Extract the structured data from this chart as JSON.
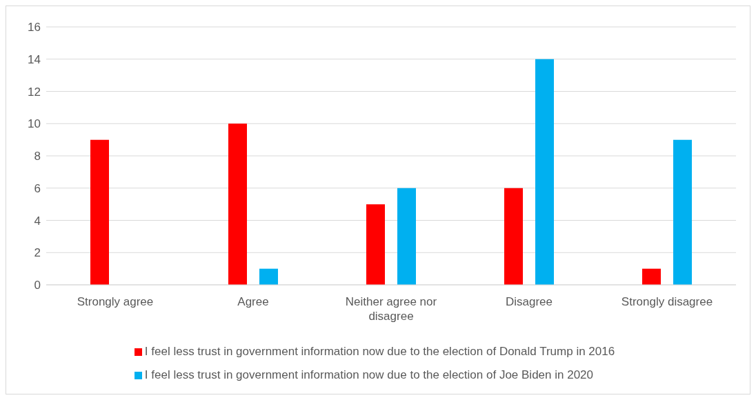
{
  "chart_data": {
    "type": "bar",
    "categories": [
      "Strongly agree",
      "Agree",
      "Neither agree nor disagree",
      "Disagree",
      "Strongly disagree"
    ],
    "series": [
      {
        "name": "I feel less trust in government information now due to the election of Donald Trump in 2016",
        "color": "#ff0000",
        "values": [
          9,
          10,
          5,
          6,
          1
        ]
      },
      {
        "name": "I feel less trust in government information now due to the election of Joe Biden in 2020",
        "color": "#00b0f0",
        "values": [
          0,
          1,
          6,
          14,
          9
        ]
      }
    ],
    "ylim": [
      0,
      16
    ],
    "yticks": [
      0,
      2,
      4,
      6,
      8,
      10,
      12,
      14,
      16
    ],
    "grid": "y",
    "legend": "bottom"
  }
}
